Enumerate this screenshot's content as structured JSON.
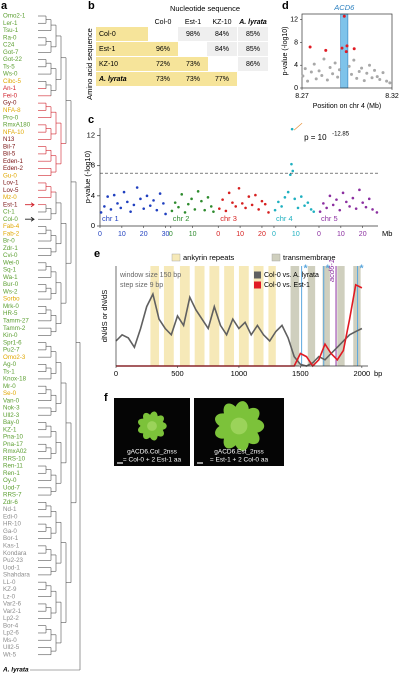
{
  "panel_letters": [
    "a",
    "b",
    "c",
    "d",
    "e",
    "f"
  ],
  "tree": {
    "leaves": [
      {
        "name": "Omo2-1",
        "color": "#5a9e2f"
      },
      {
        "name": "Ler-1",
        "color": "#5a9e2f"
      },
      {
        "name": "Tsu-1",
        "color": "#5a9e2f"
      },
      {
        "name": "Ra-0",
        "color": "#5a9e2f"
      },
      {
        "name": "C24",
        "color": "#5a9e2f"
      },
      {
        "name": "Got-7",
        "color": "#5a9e2f"
      },
      {
        "name": "Got-22",
        "color": "#5a9e2f"
      },
      {
        "name": "Ts-5",
        "color": "#5a9e2f"
      },
      {
        "name": "Ws-0",
        "color": "#5a9e2f"
      },
      {
        "name": "Cibc-5",
        "color": "#e0a800"
      },
      {
        "name": "An-1",
        "color": "#d0202a"
      },
      {
        "name": "Fei-0",
        "color": "#d0202a"
      },
      {
        "name": "Gy-0",
        "color": "#7a1414"
      },
      {
        "name": "NFA-8",
        "color": "#e0a800"
      },
      {
        "name": "Pro-0",
        "color": "#5a9e2f"
      },
      {
        "name": "RmxA180",
        "color": "#5a9e2f"
      },
      {
        "name": "NFA-10",
        "color": "#e0a800"
      },
      {
        "name": "N13",
        "color": "#7a1414"
      },
      {
        "name": "Bil-7",
        "color": "#7a1414"
      },
      {
        "name": "Bil-5",
        "color": "#7a1414"
      },
      {
        "name": "Eden-1",
        "color": "#7a1414"
      },
      {
        "name": "Eden-2",
        "color": "#7a1414"
      },
      {
        "name": "Gu-0",
        "color": "#e0a800"
      },
      {
        "name": "Lov-1",
        "color": "#7a1414"
      },
      {
        "name": "Lov-5",
        "color": "#7a1414"
      },
      {
        "name": "Mz-0",
        "color": "#e0a800"
      },
      {
        "name": "Est-1",
        "color": "#7a1414"
      },
      {
        "name": "Ct-1",
        "color": "#5a9e2f"
      },
      {
        "name": "Col-0",
        "color": "#5a9e2f"
      },
      {
        "name": "Fab-4",
        "color": "#e0a800"
      },
      {
        "name": "Fab-2",
        "color": "#e0a800"
      },
      {
        "name": "Br-0",
        "color": "#5a9e2f"
      },
      {
        "name": "Zdr-1",
        "color": "#5a9e2f"
      },
      {
        "name": "Cvi-0",
        "color": "#5a9e2f"
      },
      {
        "name": "Wei-0",
        "color": "#5a9e2f"
      },
      {
        "name": "Sq-1",
        "color": "#5a9e2f"
      },
      {
        "name": "Wa-1",
        "color": "#5a9e2f"
      },
      {
        "name": "Bur-0",
        "color": "#5a9e2f"
      },
      {
        "name": "Ws-2",
        "color": "#5a9e2f"
      },
      {
        "name": "Sorbo",
        "color": "#e0a800"
      },
      {
        "name": "Mrk-0",
        "color": "#5a9e2f"
      },
      {
        "name": "HR-5",
        "color": "#5a9e2f"
      },
      {
        "name": "Tamm-27",
        "color": "#5a9e2f"
      },
      {
        "name": "Tamm-2",
        "color": "#5a9e2f"
      },
      {
        "name": "Kin-0",
        "color": "#5a9e2f"
      },
      {
        "name": "Spr1-6",
        "color": "#5a9e2f"
      },
      {
        "name": "Pu2-7",
        "color": "#5a9e2f"
      },
      {
        "name": "Omo2-3",
        "color": "#e0a800"
      },
      {
        "name": "Ag-0",
        "color": "#5a9e2f"
      },
      {
        "name": "Ts-1",
        "color": "#5a9e2f"
      },
      {
        "name": "Knox-18",
        "color": "#5a9e2f"
      },
      {
        "name": "Mr-0",
        "color": "#5a9e2f"
      },
      {
        "name": "Se-0",
        "color": "#e0a800"
      },
      {
        "name": "Van-0",
        "color": "#5a9e2f"
      },
      {
        "name": "Nok-3",
        "color": "#5a9e2f"
      },
      {
        "name": "Ull2-3",
        "color": "#5a9e2f"
      },
      {
        "name": "Bay-0",
        "color": "#5a9e2f"
      },
      {
        "name": "KZ-1",
        "color": "#5a9e2f"
      },
      {
        "name": "Pna-10",
        "color": "#5a9e2f"
      },
      {
        "name": "Pna-17",
        "color": "#5a9e2f"
      },
      {
        "name": "RmxA02",
        "color": "#5a9e2f"
      },
      {
        "name": "RRS-10",
        "color": "#5a9e2f"
      },
      {
        "name": "Ren-11",
        "color": "#5a9e2f"
      },
      {
        "name": "Ren-1",
        "color": "#5a9e2f"
      },
      {
        "name": "Oy-0",
        "color": "#5a9e2f"
      },
      {
        "name": "Uod-7",
        "color": "#5a9e2f"
      },
      {
        "name": "RRS-7",
        "color": "#5a9e2f"
      },
      {
        "name": "Zdr-6",
        "color": "#5a9e2f"
      },
      {
        "name": "Nd-1",
        "color": "#8c8c8c"
      },
      {
        "name": "Edi-0",
        "color": "#8c8c8c"
      },
      {
        "name": "HR-10",
        "color": "#8c8c8c"
      },
      {
        "name": "Ga-0",
        "color": "#8c8c8c"
      },
      {
        "name": "Bor-1",
        "color": "#8c8c8c"
      },
      {
        "name": "Kas-1",
        "color": "#8c8c8c"
      },
      {
        "name": "Kondara",
        "color": "#8c8c8c"
      },
      {
        "name": "Pu2-23",
        "color": "#8c8c8c"
      },
      {
        "name": "Uod-1",
        "color": "#8c8c8c"
      },
      {
        "name": "Shahdara",
        "color": "#8c8c8c"
      },
      {
        "name": "LL-0",
        "color": "#8c8c8c"
      },
      {
        "name": "KZ-9",
        "color": "#8c8c8c"
      },
      {
        "name": "Lz-0",
        "color": "#8c8c8c"
      },
      {
        "name": "Var2-6",
        "color": "#8c8c8c"
      },
      {
        "name": "Var2-1",
        "color": "#8c8c8c"
      },
      {
        "name": "Lp2-2",
        "color": "#8c8c8c"
      },
      {
        "name": "Bor-4",
        "color": "#8c8c8c"
      },
      {
        "name": "Lp2-6",
        "color": "#8c8c8c"
      },
      {
        "name": "Ms-0",
        "color": "#8c8c8c"
      },
      {
        "name": "Ull2-5",
        "color": "#8c8c8c"
      },
      {
        "name": "Wt-5",
        "color": "#8c8c8c"
      }
    ],
    "outgroup": "A. lyrata"
  },
  "table": {
    "column_title": "Nucleotide sequence",
    "row_title": "Amino acid sequence",
    "columns": [
      "Col-0",
      "Est-1",
      "KZ-10",
      "A. lyrata"
    ],
    "rows": [
      {
        "label": "Col-0",
        "cells": [
          null,
          "98%",
          "84%",
          "85%"
        ]
      },
      {
        "label": "Est-1",
        "cells": [
          "96%",
          null,
          "84%",
          "85%"
        ]
      },
      {
        "label": "KZ-10",
        "cells": [
          "72%",
          "73%",
          null,
          "86%"
        ]
      },
      {
        "label": "A. lyrata",
        "cells": [
          "73%",
          "73%",
          "77%",
          null
        ]
      }
    ]
  },
  "chart_data": [
    {
      "type": "manhattan",
      "ylabel": "p-value (-log10)",
      "xunit": "Mb",
      "ylim": [
        0,
        13
      ],
      "yticks": [
        0,
        4,
        8,
        12
      ],
      "threshold": 7,
      "annotation": {
        "base": "p = 10",
        "exponent": "-12.85"
      },
      "series": [
        {
          "name": "chr 1",
          "color": "#1f3fbf",
          "xlim": [
            0,
            30.4
          ],
          "xticks": [
            0,
            10,
            20,
            30
          ],
          "x": [
            0.5,
            2,
            3.5,
            5,
            6.5,
            8,
            9.5,
            11,
            12.5,
            14,
            15.5,
            17,
            18.5,
            20,
            21.5,
            23,
            24.5,
            26,
            27.5,
            29,
            30
          ],
          "values": [
            1.8,
            2.6,
            3.9,
            2.2,
            4.1,
            3.0,
            2.4,
            4.5,
            3.2,
            1.9,
            2.8,
            5.1,
            3.6,
            2.3,
            4.0,
            2.7,
            3.4,
            2.1,
            4.3,
            3.0,
            1.6
          ]
        },
        {
          "name": "chr 2",
          "color": "#2e8b2e",
          "xlim": [
            0,
            19.7
          ],
          "xticks": [
            0,
            10
          ],
          "x": [
            0.5,
            2,
            3.5,
            5,
            6.5,
            8,
            9.5,
            11,
            12.5,
            14,
            15.5,
            17,
            18.5,
            19.5
          ],
          "values": [
            2.0,
            3.1,
            2.5,
            4.2,
            1.8,
            2.9,
            3.6,
            2.2,
            4.6,
            3.3,
            2.1,
            3.8,
            2.6,
            1.9
          ]
        },
        {
          "name": "chr 3",
          "color": "#d62020",
          "xlim": [
            0,
            23.5
          ],
          "xticks": [
            0,
            10,
            20
          ],
          "x": [
            0.5,
            2,
            3.5,
            5,
            6.5,
            8,
            9.5,
            11,
            12.5,
            14,
            15.5,
            17,
            18.5,
            20,
            21.5,
            23
          ],
          "values": [
            2.3,
            3.5,
            2.0,
            4.4,
            3.1,
            2.6,
            5.0,
            3.0,
            2.4,
            3.9,
            2.8,
            4.1,
            2.2,
            3.3,
            2.9,
            1.8
          ]
        },
        {
          "name": "chr 4",
          "color": "#1fb0c0",
          "xlim": [
            0,
            18.6
          ],
          "xticks": [
            0,
            10
          ],
          "x": [
            0.5,
            2,
            3.5,
            5,
            6.5,
            7.5,
            8.0,
            8.3,
            8.6,
            9.5,
            11,
            12.5,
            14,
            15.5,
            17,
            18.2
          ],
          "values": [
            2.1,
            3.2,
            2.6,
            3.8,
            4.5,
            6.8,
            8.2,
            12.85,
            7.3,
            3.6,
            2.4,
            3.9,
            2.7,
            3.1,
            2.2,
            1.9
          ]
        },
        {
          "name": "chr 5",
          "color": "#8b2fa0",
          "xlim": [
            0,
            27.0
          ],
          "xticks": [
            0,
            10,
            20
          ],
          "x": [
            0.5,
            2,
            3.5,
            5,
            6.5,
            8,
            9.5,
            11,
            12.5,
            14,
            15.5,
            17,
            18.5,
            20,
            21.5,
            23,
            24.5,
            26.5
          ],
          "values": [
            1.9,
            3.0,
            2.4,
            4.0,
            2.8,
            3.5,
            2.1,
            4.4,
            3.2,
            2.6,
            3.7,
            2.3,
            4.8,
            3.1,
            2.5,
            3.6,
            2.2,
            1.8
          ]
        }
      ]
    },
    {
      "type": "scatter",
      "xlabel": "Position on chr 4 (Mb)",
      "ylabel": "p-value (-log10)",
      "xlim": [
        8.27,
        8.32
      ],
      "xticks": [
        8.27,
        8.32
      ],
      "ylim": [
        0,
        13
      ],
      "yticks": [
        0,
        4,
        8,
        12
      ],
      "highlight": {
        "label": "ACD6",
        "range": [
          8.2915,
          8.2955
        ],
        "color": "#7ec3ea"
      },
      "series": [
        {
          "color": "#a8a8a8",
          "x": [
            8.2705,
            8.2718,
            8.2731,
            8.2752,
            8.2768,
            8.2779,
            8.2795,
            8.281,
            8.2822,
            8.2841,
            8.2856,
            8.287,
            8.2884,
            8.2898,
            8.2908,
            8.2962,
            8.2975,
            8.2988,
            8.3004,
            8.3018,
            8.3031,
            8.3046,
            8.306,
            8.3075,
            8.3089,
            8.3103,
            8.3118,
            8.3132,
            8.315,
            8.317,
            8.3188
          ],
          "values": [
            2.1,
            3.4,
            1.2,
            2.8,
            4.2,
            1.6,
            3.0,
            2.2,
            5.1,
            1.4,
            3.6,
            2.5,
            4.4,
            1.9,
            3.2,
            3.8,
            2.4,
            4.9,
            1.7,
            2.9,
            3.5,
            1.3,
            2.6,
            4.0,
            1.8,
            3.1,
            2.0,
            1.5,
            2.7,
            1.2,
            0.9
          ]
        },
        {
          "color": "#e01b24",
          "x": [
            8.2745,
            8.2832,
            8.2922,
            8.2935,
            8.2946,
            8.295,
            8.299
          ],
          "values": [
            7.2,
            6.6,
            7.0,
            12.6,
            6.4,
            7.4,
            6.9
          ]
        }
      ]
    },
    {
      "type": "line",
      "ylabel": "dN/dS or dN/dS",
      "xunit": "bp",
      "xlim": [
        0,
        2050
      ],
      "xticks": [
        0,
        500,
        1000,
        1500,
        2000
      ],
      "ylim": [
        0,
        3.2
      ],
      "notes": [
        "window size 150 bp",
        "step size 9 bp"
      ],
      "regions": [
        {
          "name": "ankyrin repeats",
          "color": "#f6e9b8",
          "ranges": [
            [
              280,
              350
            ],
            [
              390,
              470
            ],
            [
              520,
              600
            ],
            [
              640,
              720
            ],
            [
              760,
              840
            ],
            [
              880,
              960
            ],
            [
              1000,
              1080
            ],
            [
              1120,
              1200
            ],
            [
              1240,
              1300
            ]
          ]
        },
        {
          "name": "transmembrane",
          "color": "#cfcfbe",
          "ranges": [
            [
              1420,
              1490
            ],
            [
              1560,
              1620
            ],
            [
              1680,
              1740
            ],
            [
              1800,
              1860
            ],
            [
              1930,
              1990
            ]
          ]
        }
      ],
      "markers": [
        {
          "x": 1510,
          "color": "#5aa7de",
          "label": "*"
        },
        {
          "x": 1690,
          "color": "#5aa7de",
          "label": "*"
        },
        {
          "x": 1790,
          "color": "#8b2fa0",
          "label": "acd6-1"
        },
        {
          "x": 1965,
          "color": "#5aa7de",
          "label": "*"
        }
      ],
      "series": [
        {
          "name": "Col-0 vs. A. lyrata",
          "color": "#606060",
          "x": [
            0,
            50,
            100,
            150,
            200,
            250,
            300,
            350,
            400,
            450,
            500,
            550,
            600,
            650,
            700,
            750,
            800,
            850,
            900,
            950,
            1000,
            1050,
            1100,
            1150,
            1200,
            1250,
            1300,
            1350,
            1400,
            1450,
            1500,
            1550,
            1600,
            1650,
            1700,
            1750,
            1800,
            1850,
            1900,
            1950,
            2000
          ],
          "values": [
            0.8,
            1.0,
            0.9,
            0.6,
            1.2,
            1.9,
            2.3,
            1.5,
            1.2,
            1.0,
            1.6,
            1.3,
            2.2,
            1.8,
            1.5,
            1.2,
            1.9,
            1.3,
            1.0,
            1.5,
            1.2,
            1.4,
            1.0,
            1.3,
            1.0,
            0.8,
            1.1,
            1.3,
            0.9,
            0.3,
            0.05,
            0.0,
            0.1,
            0.3,
            0.2,
            0.4,
            0.6,
            0.8,
            1.0,
            1.1,
            1.2
          ]
        },
        {
          "name": "Col-0 vs. Est-1",
          "color": "#e01b24",
          "x": [
            0,
            1450,
            1500,
            1550,
            1600,
            1650,
            1700,
            1750,
            1800,
            1850,
            1900,
            1950,
            2000
          ],
          "values": [
            0,
            0,
            0.4,
            0.3,
            0,
            0.2,
            0.7,
            0.4,
            0.2,
            0.5,
            1.5,
            2.6,
            2.5
          ]
        }
      ]
    }
  ],
  "photos": [
    {
      "line1": "gACD6.Col_2nss",
      "line2": "= Col-0 + 2 Est-1 aa"
    },
    {
      "line1": "gACD6.Est_2nss",
      "line2": "= Est-1 + 2 Col-0 aa"
    }
  ]
}
